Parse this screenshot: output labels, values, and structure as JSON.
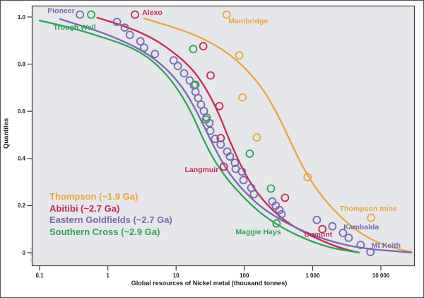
{
  "figure": {
    "side_note": "04-160-3"
  },
  "axes": {
    "x": {
      "title": "Global resources of Nickel metal (thousand tonnes)",
      "scale": "log",
      "tick_labels": [
        "0.1",
        "1",
        "10",
        "100",
        "1 000",
        "10 000"
      ],
      "tick_values": [
        0.1,
        1,
        10,
        100,
        1000,
        10000
      ]
    },
    "y": {
      "title": "Quantiles",
      "tick_labels": [
        "1.0",
        "0.8",
        "0.6",
        "0.4",
        "0.2",
        "0"
      ],
      "tick_values": [
        1.0,
        0.8,
        0.6,
        0.4,
        0.2,
        0
      ]
    }
  },
  "legend": [
    {
      "label": "Thompson (~1.9 Ga)",
      "color": "#EAA63F"
    },
    {
      "label": "Abitibi (~2.7 Ga)",
      "color": "#C62A51"
    },
    {
      "label": "Eastern Goldfields (~2.7 Ga)",
      "color": "#7A68B0"
    },
    {
      "label": "Southern Cross (~2.9 Ga)",
      "color": "#2FA356"
    }
  ],
  "colors": {
    "panel_bg": "#E5E7EA",
    "frame": "#3c3c3e",
    "tick_text": "#1c1c1e"
  },
  "chart_data": {
    "type": "line",
    "subtype": "quantile-distribution curves with scatter overlay",
    "xlabel": "Global resources of Nickel metal (thousand tonnes)",
    "ylabel": "Quantiles",
    "xscale": "log",
    "xlim": [
      0.1,
      10000
    ],
    "ylim": [
      0,
      1
    ],
    "grid": false,
    "legend_position": "inside bottom-left",
    "series": [
      {
        "name": "Thompson (~1.9 Ga)",
        "color": "#EAA63F",
        "curve": [
          [
            3.4,
            0.994
          ],
          [
            9,
            0.958
          ],
          [
            24,
            0.912
          ],
          [
            55,
            0.852
          ],
          [
            110,
            0.776
          ],
          [
            190,
            0.692
          ],
          [
            290,
            0.601
          ],
          [
            410,
            0.511
          ],
          [
            560,
            0.426
          ],
          [
            780,
            0.344
          ],
          [
            1200,
            0.26
          ],
          [
            1950,
            0.187
          ],
          [
            3270,
            0.124
          ],
          [
            6100,
            0.066
          ],
          [
            12400,
            0.027
          ],
          [
            28000,
            0.003
          ]
        ],
        "points": [
          [
            55,
            1.01
          ],
          [
            84,
            0.837
          ],
          [
            94,
            0.659
          ],
          [
            152,
            0.489
          ],
          [
            845,
            0.32
          ],
          [
            7200,
            0.148
          ]
        ]
      },
      {
        "name": "Abitibi (~2.7 Ga)",
        "color": "#C62A51",
        "curve": [
          [
            0.7,
            0.997
          ],
          [
            1.7,
            0.964
          ],
          [
            4.5,
            0.912
          ],
          [
            10,
            0.843
          ],
          [
            19,
            0.767
          ],
          [
            30,
            0.677
          ],
          [
            43,
            0.586
          ],
          [
            57,
            0.495
          ],
          [
            74,
            0.42
          ],
          [
            98,
            0.344
          ],
          [
            141,
            0.269
          ],
          [
            229,
            0.193
          ],
          [
            466,
            0.118
          ],
          [
            1200,
            0.057
          ],
          [
            2470,
            0.021
          ],
          [
            4500,
            0.002
          ]
        ],
        "points": [
          [
            2.5,
            1.01
          ],
          [
            25,
            0.876
          ],
          [
            32,
            0.752
          ],
          [
            43,
            0.622
          ],
          [
            45,
            0.486
          ],
          [
            50,
            0.365
          ],
          [
            394,
            0.233
          ],
          [
            1390,
            0.1
          ]
        ]
      },
      {
        "name": "Eastern Goldfields (~2.7 Ga)",
        "color": "#7A68B0",
        "curve": [
          [
            0.2,
            0.991
          ],
          [
            0.59,
            0.949
          ],
          [
            1.54,
            0.903
          ],
          [
            3.5,
            0.852
          ],
          [
            7.2,
            0.782
          ],
          [
            12.5,
            0.701
          ],
          [
            18.7,
            0.616
          ],
          [
            26.7,
            0.526
          ],
          [
            38,
            0.435
          ],
          [
            57,
            0.344
          ],
          [
            98,
            0.26
          ],
          [
            202,
            0.178
          ],
          [
            525,
            0.109
          ],
          [
            1530,
            0.054
          ],
          [
            5000,
            0.018
          ],
          [
            28000,
            0.001
          ]
        ],
        "points": [
          [
            0.39,
            1.01
          ],
          [
            1.36,
            0.979
          ],
          [
            1.77,
            0.955
          ],
          [
            2.1,
            0.924
          ],
          [
            3.0,
            0.897
          ],
          [
            3.4,
            0.87
          ],
          [
            4.9,
            0.843
          ],
          [
            9.2,
            0.816
          ],
          [
            10.6,
            0.792
          ],
          [
            13.1,
            0.761
          ],
          [
            15.8,
            0.731
          ],
          [
            18.3,
            0.71
          ],
          [
            19.2,
            0.683
          ],
          [
            21.1,
            0.656
          ],
          [
            23.2,
            0.628
          ],
          [
            25.5,
            0.601
          ],
          [
            28,
            0.574
          ],
          [
            30.8,
            0.55
          ],
          [
            31.6,
            0.517
          ],
          [
            37.3,
            0.483
          ],
          [
            45,
            0.459
          ],
          [
            56,
            0.429
          ],
          [
            61.5,
            0.408
          ],
          [
            72.6,
            0.381
          ],
          [
            74.5,
            0.356
          ],
          [
            92,
            0.344
          ],
          [
            97,
            0.308
          ],
          [
            126,
            0.275
          ],
          [
            138,
            0.248
          ],
          [
            257,
            0.217
          ],
          [
            289,
            0.199
          ],
          [
            326,
            0.181
          ],
          [
            350,
            0.163
          ],
          [
            1150,
            0.139
          ],
          [
            1950,
            0.112
          ],
          [
            2780,
            0.084
          ],
          [
            3370,
            0.063
          ],
          [
            5040,
            0.033
          ],
          [
            7030,
            0.003
          ]
        ]
      },
      {
        "name": "Southern Cross (~2.9 Ga)",
        "color": "#2FA356",
        "curve": [
          [
            0.1,
            0.985
          ],
          [
            0.29,
            0.955
          ],
          [
            0.75,
            0.918
          ],
          [
            1.95,
            0.879
          ],
          [
            4.0,
            0.828
          ],
          [
            7.2,
            0.758
          ],
          [
            11.6,
            0.677
          ],
          [
            17.4,
            0.586
          ],
          [
            23.7,
            0.495
          ],
          [
            34,
            0.405
          ],
          [
            52,
            0.323
          ],
          [
            88,
            0.248
          ],
          [
            167,
            0.169
          ],
          [
            367,
            0.103
          ],
          [
            890,
            0.051
          ],
          [
            1950,
            0.018
          ],
          [
            4800,
            0.001
          ]
        ],
        "points": [
          [
            0.57,
            1.01
          ],
          [
            17.8,
            0.864
          ],
          [
            19.2,
            0.713
          ],
          [
            27.4,
            0.565
          ],
          [
            120,
            0.42
          ],
          [
            245,
            0.272
          ],
          [
            296,
            0.124
          ]
        ]
      }
    ],
    "annotations": [
      {
        "text": "Pioneer",
        "color": "#7A68B0",
        "x": 0.207,
        "q": 1.028
      },
      {
        "text": "Trough Well",
        "color": "#2FA356",
        "x": 0.326,
        "q": 0.958
      },
      {
        "text": "Alexo",
        "color": "#C62A51",
        "x": 4.48,
        "q": 1.021
      },
      {
        "text": "Manibridge",
        "color": "#EAA63F",
        "x": 114,
        "q": 0.985
      },
      {
        "text": "Langmuir",
        "color": "#C62A51",
        "x": 23.7,
        "q": 0.354
      },
      {
        "text": "Maggie Hays",
        "color": "#2FA356",
        "x": 160,
        "q": 0.09
      },
      {
        "text": "Dumont",
        "color": "#C62A51",
        "x": 1210,
        "q": 0.079
      },
      {
        "text": "Thompson mine",
        "color": "#EAA63F",
        "x": 6550,
        "q": 0.189
      },
      {
        "text": "Kambalda",
        "color": "#7A68B0",
        "x": 5160,
        "q": 0.111
      },
      {
        "text": "Mt Keith",
        "color": "#7A68B0",
        "x": 11900,
        "q": 0.033
      }
    ]
  }
}
